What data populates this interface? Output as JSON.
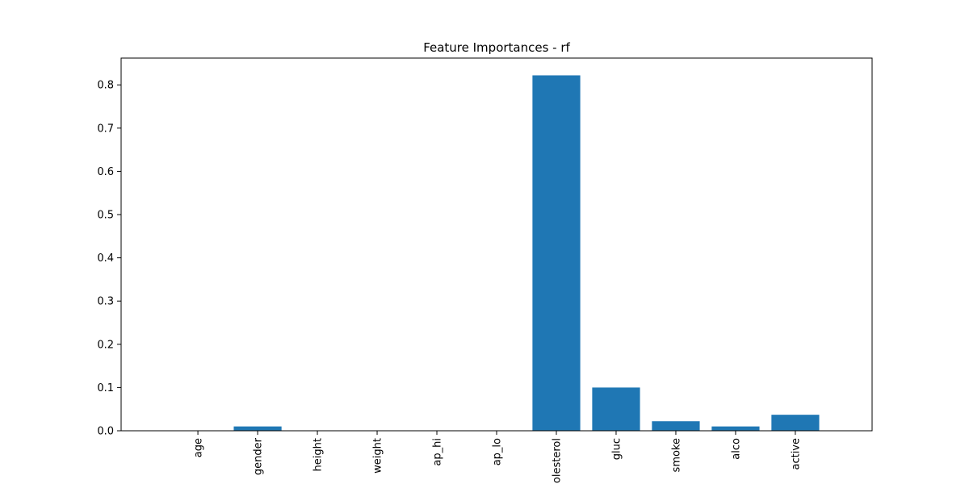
{
  "chart_data": {
    "type": "bar",
    "title": "Feature Importances - rf",
    "xlabel": "",
    "ylabel": "",
    "categories": [
      "age",
      "gender",
      "height",
      "weight",
      "ap_hi",
      "ap_lo",
      "cholesterol",
      "gluc",
      "smoke",
      "alco",
      "active"
    ],
    "values": [
      0.0,
      0.01,
      0.0,
      0.0,
      0.0,
      0.0,
      0.822,
      0.1,
      0.022,
      0.01,
      0.037
    ],
    "ylim": [
      0,
      0.862
    ],
    "yticks": [
      0.0,
      0.1,
      0.2,
      0.3,
      0.4,
      0.5,
      0.6,
      0.7,
      0.8
    ],
    "ytick_labels": [
      "0.0",
      "0.1",
      "0.2",
      "0.3",
      "0.4",
      "0.5",
      "0.6",
      "0.7",
      "0.8"
    ],
    "grid": false,
    "bar_color": "#1f77b4"
  }
}
